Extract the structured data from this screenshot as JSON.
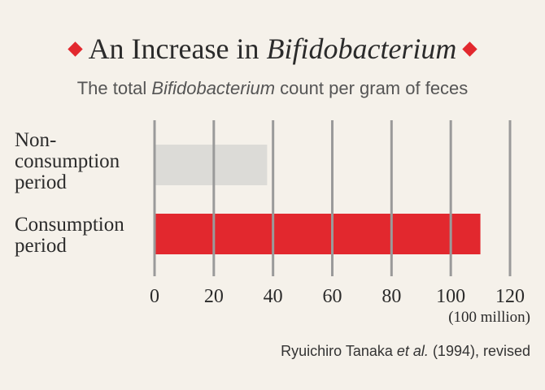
{
  "title": {
    "prefix": "An Increase in ",
    "emphasis": "Bifidobacterium"
  },
  "subtitle": {
    "prefix": "The total ",
    "emphasis": "Bifidobacterium",
    "suffix": " count per gram of feces"
  },
  "unit_label": "(100 million)",
  "source": {
    "prefix": "Ryuichiro Tanaka ",
    "emphasis": "et al.",
    "suffix": " (1994), revised"
  },
  "colors": {
    "accent": "#e2282e",
    "bar_non": "#dcdbd7",
    "bar_consumption": "#e2282e",
    "grid": "#9a9a9a"
  },
  "chart_data": {
    "type": "bar",
    "orientation": "horizontal",
    "categories": [
      "Non-\nconsumption\nperiod",
      "Consumption\nperiod"
    ],
    "values": [
      38,
      110
    ],
    "xlim": [
      0,
      120
    ],
    "ticks": [
      0,
      20,
      40,
      60,
      80,
      100,
      120
    ],
    "grid": true
  }
}
